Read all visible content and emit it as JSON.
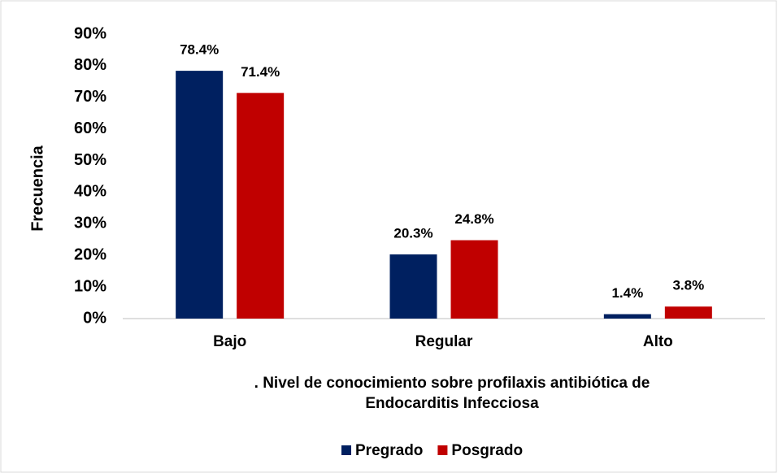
{
  "chart_data": {
    "type": "bar",
    "categories": [
      "Bajo",
      "Regular",
      "Alto"
    ],
    "series": [
      {
        "name": "Pregrado",
        "color": "#002060",
        "values": [
          78.4,
          20.3,
          1.4
        ],
        "value_labels": [
          "78.4%",
          "20.3%",
          "1.4%"
        ]
      },
      {
        "name": "Posgrado",
        "color": "#c00000",
        "values": [
          71.4,
          24.8,
          3.8
        ],
        "value_labels": [
          "71.4%",
          "24.8%",
          "3.8%"
        ]
      }
    ],
    "ylabel": "Frecuencia",
    "xlabel": [
      ". Nivel de conocimiento sobre profilaxis antibiótica de",
      "Endocarditis Infecciosa"
    ],
    "ylim": [
      0,
      90
    ],
    "yticks": [
      {
        "value": 0,
        "label": "0%"
      },
      {
        "value": 10,
        "label": "10%"
      },
      {
        "value": 20,
        "label": "20%"
      },
      {
        "value": 30,
        "label": "30%"
      },
      {
        "value": 40,
        "label": "40%"
      },
      {
        "value": 50,
        "label": "50%"
      },
      {
        "value": 60,
        "label": "60%"
      },
      {
        "value": 70,
        "label": "70%"
      },
      {
        "value": 80,
        "label": "80%"
      },
      {
        "value": 90,
        "label": "90%"
      }
    ],
    "grid": false,
    "legend": "bottom"
  }
}
